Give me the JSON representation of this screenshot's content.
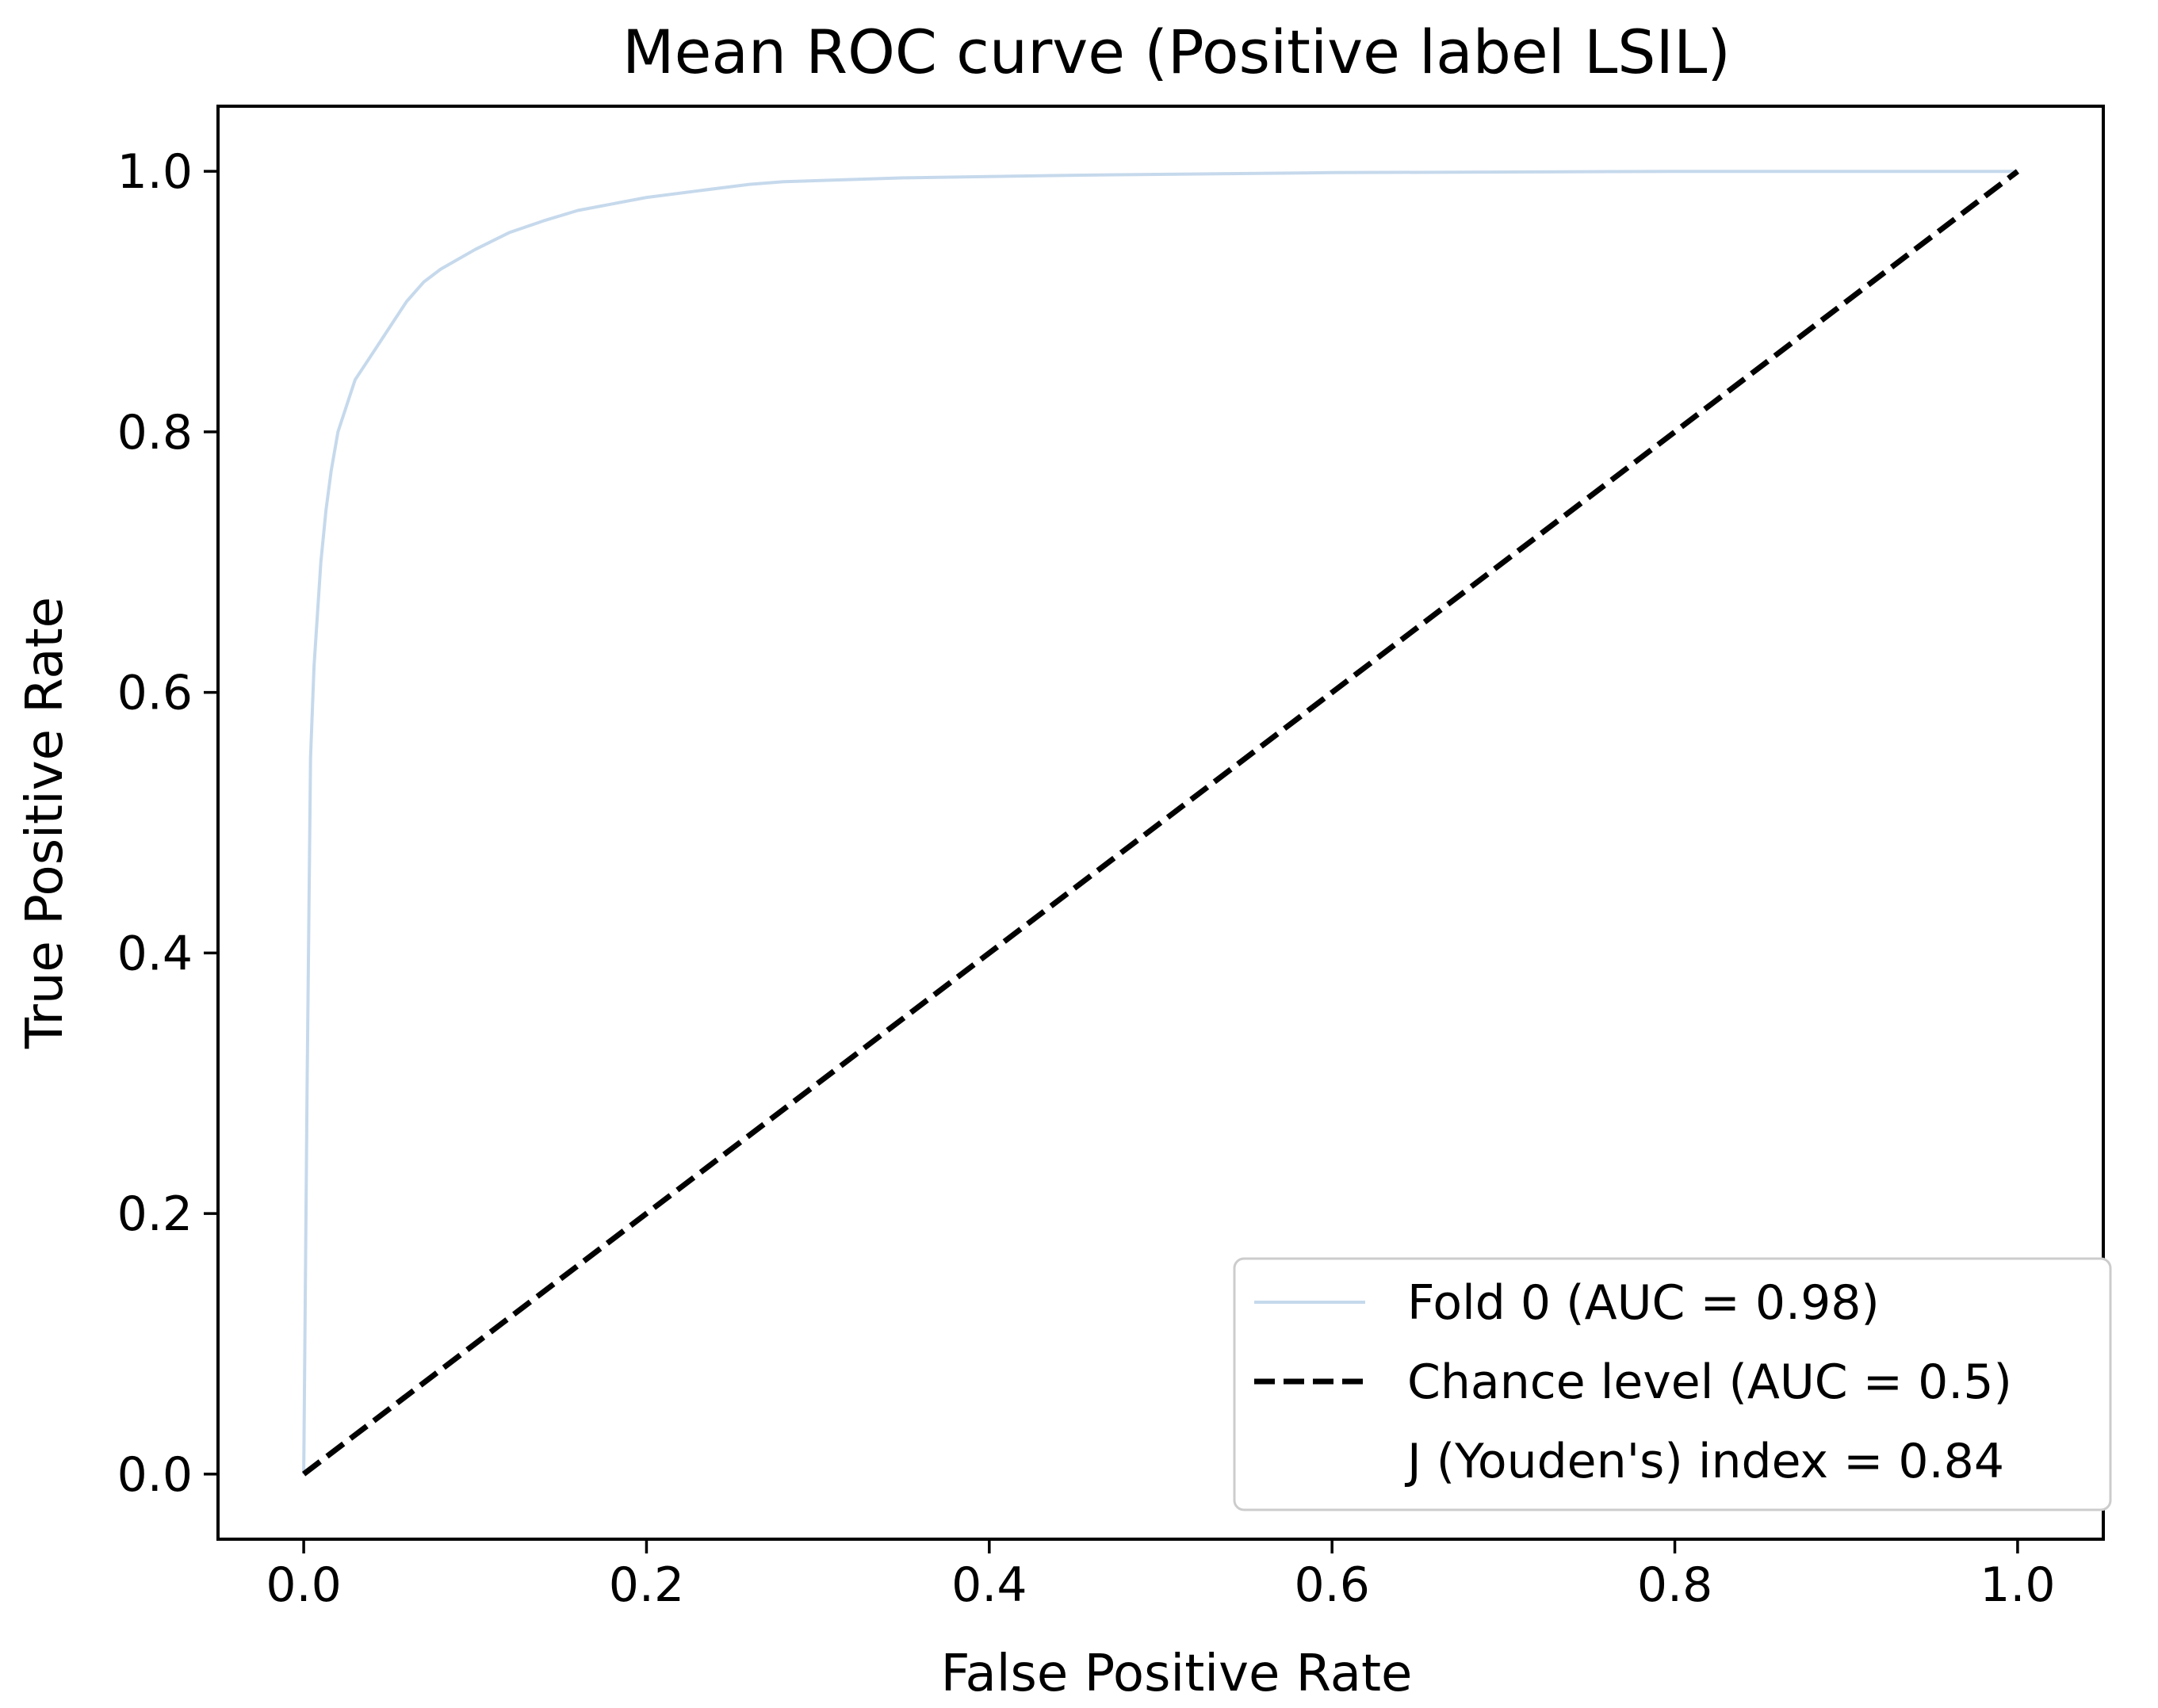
{
  "chart_data": {
    "type": "line",
    "title": "Mean ROC curve (Positive label LSIL)",
    "xlabel": "False Positive Rate",
    "ylabel": "True Positive Rate",
    "xlim": [
      -0.05,
      1.05
    ],
    "ylim": [
      -0.05,
      1.05
    ],
    "grid": false,
    "legend_position": "lower-right",
    "xticks": [
      0.0,
      0.2,
      0.4,
      0.6,
      0.8,
      1.0
    ],
    "xtick_labels": [
      "0.0",
      "0.2",
      "0.4",
      "0.6",
      "0.8",
      "1.0"
    ],
    "yticks": [
      0.0,
      0.2,
      0.4,
      0.6,
      0.8,
      1.0
    ],
    "ytick_labels": [
      "0.0",
      "0.2",
      "0.4",
      "0.6",
      "0.8",
      "1.0"
    ],
    "series": [
      {
        "name": "Fold 0 (AUC = 0.98)",
        "color": "#c6d9ec",
        "style": "solid",
        "x": [
          0.0,
          0.002,
          0.004,
          0.006,
          0.008,
          0.01,
          0.013,
          0.016,
          0.02,
          0.025,
          0.03,
          0.035,
          0.04,
          0.05,
          0.06,
          0.07,
          0.08,
          0.1,
          0.12,
          0.14,
          0.16,
          0.18,
          0.2,
          0.23,
          0.26,
          0.28,
          0.35,
          0.45,
          0.6,
          0.8,
          1.0
        ],
        "y": [
          0.0,
          0.3,
          0.55,
          0.62,
          0.66,
          0.7,
          0.74,
          0.77,
          0.8,
          0.82,
          0.84,
          0.85,
          0.86,
          0.88,
          0.9,
          0.915,
          0.925,
          0.94,
          0.953,
          0.962,
          0.97,
          0.975,
          0.98,
          0.985,
          0.99,
          0.992,
          0.995,
          0.997,
          0.999,
          1.0,
          1.0
        ]
      },
      {
        "name": "Chance level (AUC = 0.5)",
        "color": "#000000",
        "style": "dashed",
        "x": [
          0.0,
          1.0
        ],
        "y": [
          0.0,
          1.0
        ]
      }
    ],
    "annotations": [
      "J (Youden's) index = 0.84"
    ]
  }
}
